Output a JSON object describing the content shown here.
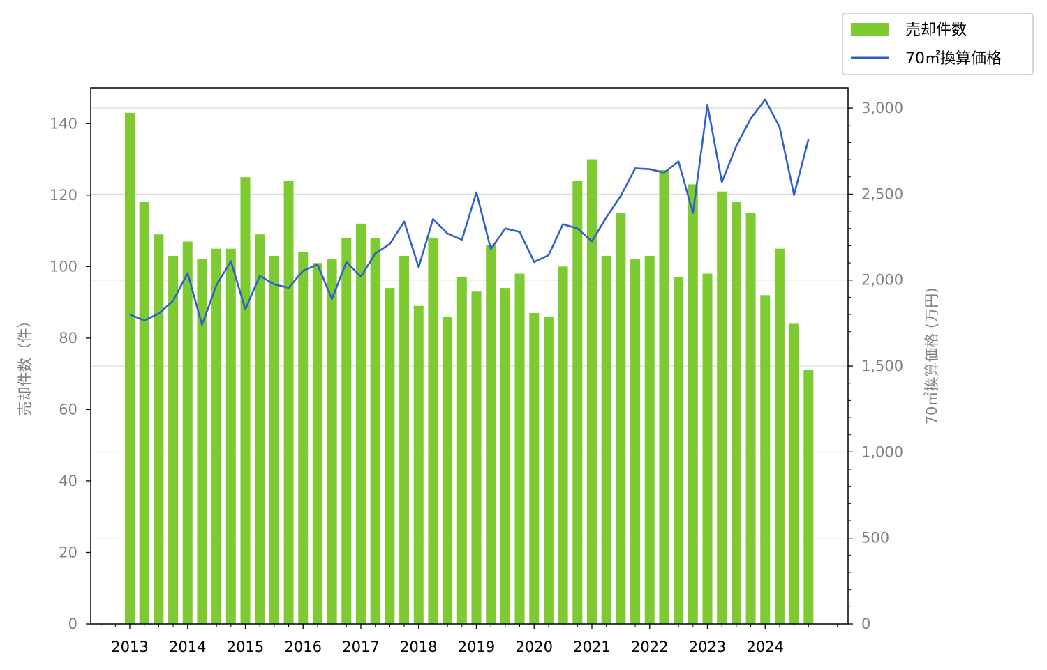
{
  "chart_data": {
    "type": "bar",
    "x_tick_labels": [
      "2013",
      "2014",
      "2015",
      "2016",
      "2017",
      "2018",
      "2019",
      "2020",
      "2021",
      "2022",
      "2023",
      "2024"
    ],
    "x_start_year": 2013,
    "x_step_years": 0.25,
    "ylabel_left": "売却件数（件）",
    "ylabel_right": "70㎡換算価格 (万円)",
    "ylim_left": [
      0,
      150
    ],
    "ylim_right": [
      0,
      3118
    ],
    "yticks_left": [
      0,
      20,
      40,
      60,
      80,
      100,
      120,
      140
    ],
    "yticks_right": [
      0,
      500,
      1000,
      1500,
      2000,
      2500,
      3000
    ],
    "ytick_labels_right": [
      "0",
      "500",
      "1,000",
      "1,500",
      "2,000",
      "2,500",
      "3,000"
    ],
    "grid": "horizontal, right axis",
    "legend": "top-right, outside plot",
    "series": [
      {
        "name": "売却件数",
        "type": "bar",
        "axis": "left",
        "color": "#7ecb31",
        "values": [
          143,
          118,
          109,
          103,
          107,
          102,
          105,
          105,
          125,
          109,
          103,
          124,
          104,
          101,
          102,
          108,
          112,
          108,
          94,
          103,
          89,
          108,
          86,
          97,
          93,
          106,
          94,
          98,
          87,
          86,
          100,
          124,
          130,
          103,
          115,
          102,
          103,
          127,
          97,
          123,
          98,
          121,
          118,
          115,
          92,
          105,
          84,
          71
        ]
      },
      {
        "name": "70㎡換算価格",
        "type": "line",
        "axis": "right",
        "color": "#3060c8",
        "values": [
          1800,
          1765,
          1805,
          1880,
          2040,
          1740,
          1970,
          2110,
          1830,
          2025,
          1975,
          1955,
          2055,
          2090,
          1890,
          2105,
          2020,
          2155,
          2210,
          2340,
          2075,
          2355,
          2270,
          2235,
          2510,
          2180,
          2300,
          2280,
          2105,
          2145,
          2325,
          2300,
          2225,
          2365,
          2490,
          2650,
          2645,
          2625,
          2690,
          2390,
          3020,
          2570,
          2780,
          2940,
          3050,
          2890,
          2495,
          2820
        ]
      }
    ]
  }
}
